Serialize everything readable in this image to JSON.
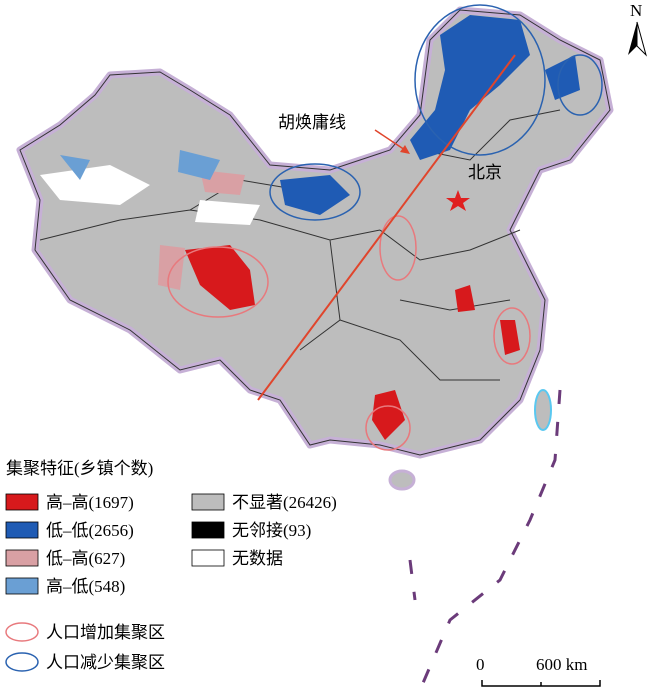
{
  "map": {
    "north_label": "N",
    "line_label": "胡焕庸线",
    "capital_label": "北京",
    "legend": {
      "title": "集聚特征(乡镇个数)",
      "items": [
        {
          "label": "高–高(1697)",
          "color": "#d7191c"
        },
        {
          "label": "低–低(2656)",
          "color": "#1f5bb4"
        },
        {
          "label": "低–高(627)",
          "color": "#d9a0a4"
        },
        {
          "label": "高–低(548)",
          "color": "#6a9fd4"
        },
        {
          "label": "不显著(26426)",
          "color": "#bdbdbd"
        },
        {
          "label": "无邻接(93)",
          "color": "#000000"
        },
        {
          "label": "无数据",
          "color": "#ffffff"
        }
      ],
      "zones": [
        {
          "label": "人口增加集聚区",
          "color": "#e8797d"
        },
        {
          "label": "人口减少集聚区",
          "color": "#2a62b0"
        }
      ]
    },
    "scale_bar": {
      "start": "0",
      "end": "600 km"
    }
  }
}
